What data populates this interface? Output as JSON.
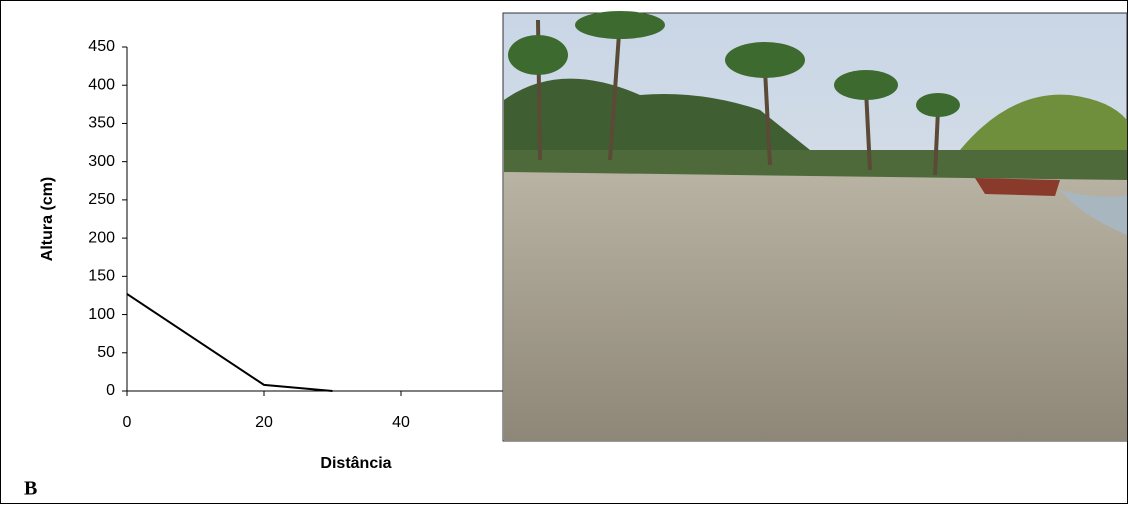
{
  "chart_data": {
    "type": "line",
    "x_label": "Distância",
    "y_label": "Altura (cm)",
    "x": [
      0,
      20,
      30
    ],
    "values": [
      127,
      8,
      0
    ],
    "color": "#000000",
    "xlim": [
      0,
      60
    ],
    "xticks": [
      0,
      20,
      40
    ],
    "ylim": [
      0,
      450
    ],
    "yticks": [
      0,
      50,
      100,
      150,
      200,
      250,
      300,
      350,
      400,
      450
    ]
  },
  "panel_label": "B"
}
